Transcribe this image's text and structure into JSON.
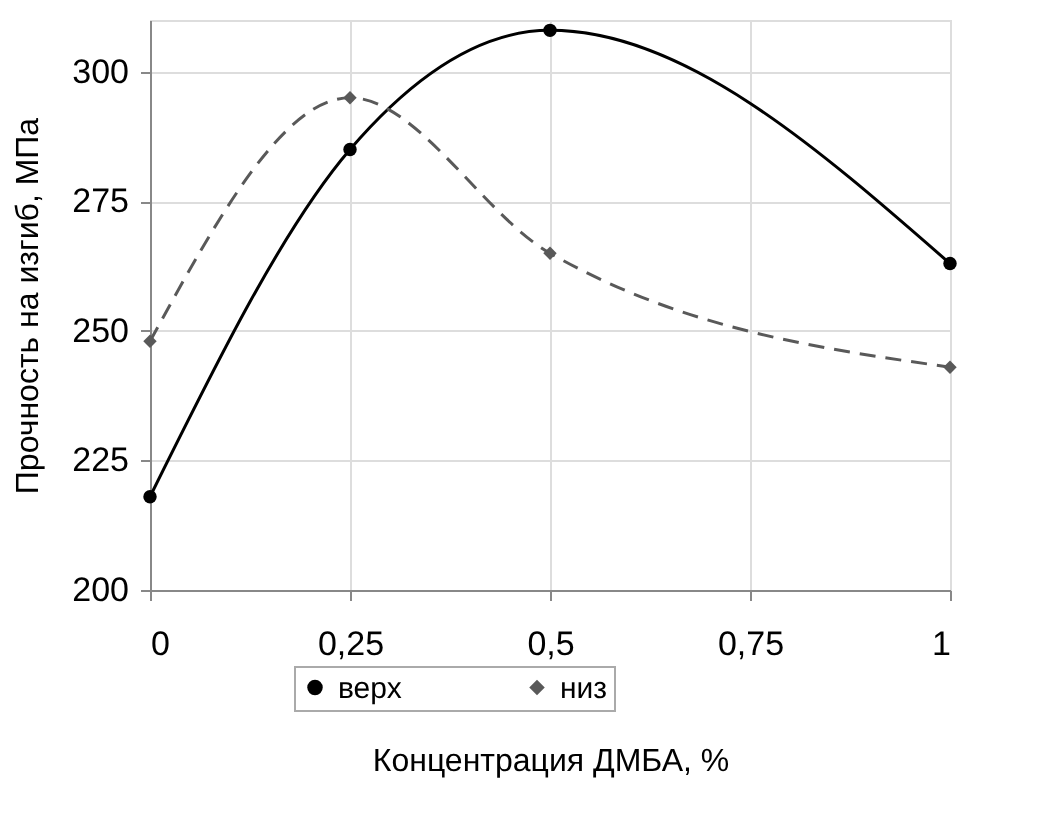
{
  "chart_data": {
    "type": "line",
    "xlabel": "Концентрация ДМБА, %",
    "ylabel": "Прочность на изгиб, МПа",
    "x": [
      0,
      0.25,
      0.5,
      1
    ],
    "series": [
      {
        "name": "верх",
        "color": "#000000",
        "values": [
          218,
          285,
          308,
          263
        ],
        "marker": "circle",
        "line_style": "solid"
      },
      {
        "name": "низ",
        "color": "#595959",
        "values": [
          248,
          295,
          265,
          243
        ],
        "marker": "diamond",
        "line_style": "dashed"
      }
    ],
    "xlim": [
      0,
      1
    ],
    "xticks": [
      0,
      {
        "value": 0.25,
        "label": "0,25"
      },
      {
        "value": 0.5,
        "label": "0,5"
      },
      {
        "value": 0.75,
        "label": "0,75"
      },
      1
    ],
    "ylim": [
      200,
      310
    ],
    "yticks": [
      200,
      225,
      250,
      275,
      300
    ],
    "grid": true,
    "legend": "bottom"
  }
}
